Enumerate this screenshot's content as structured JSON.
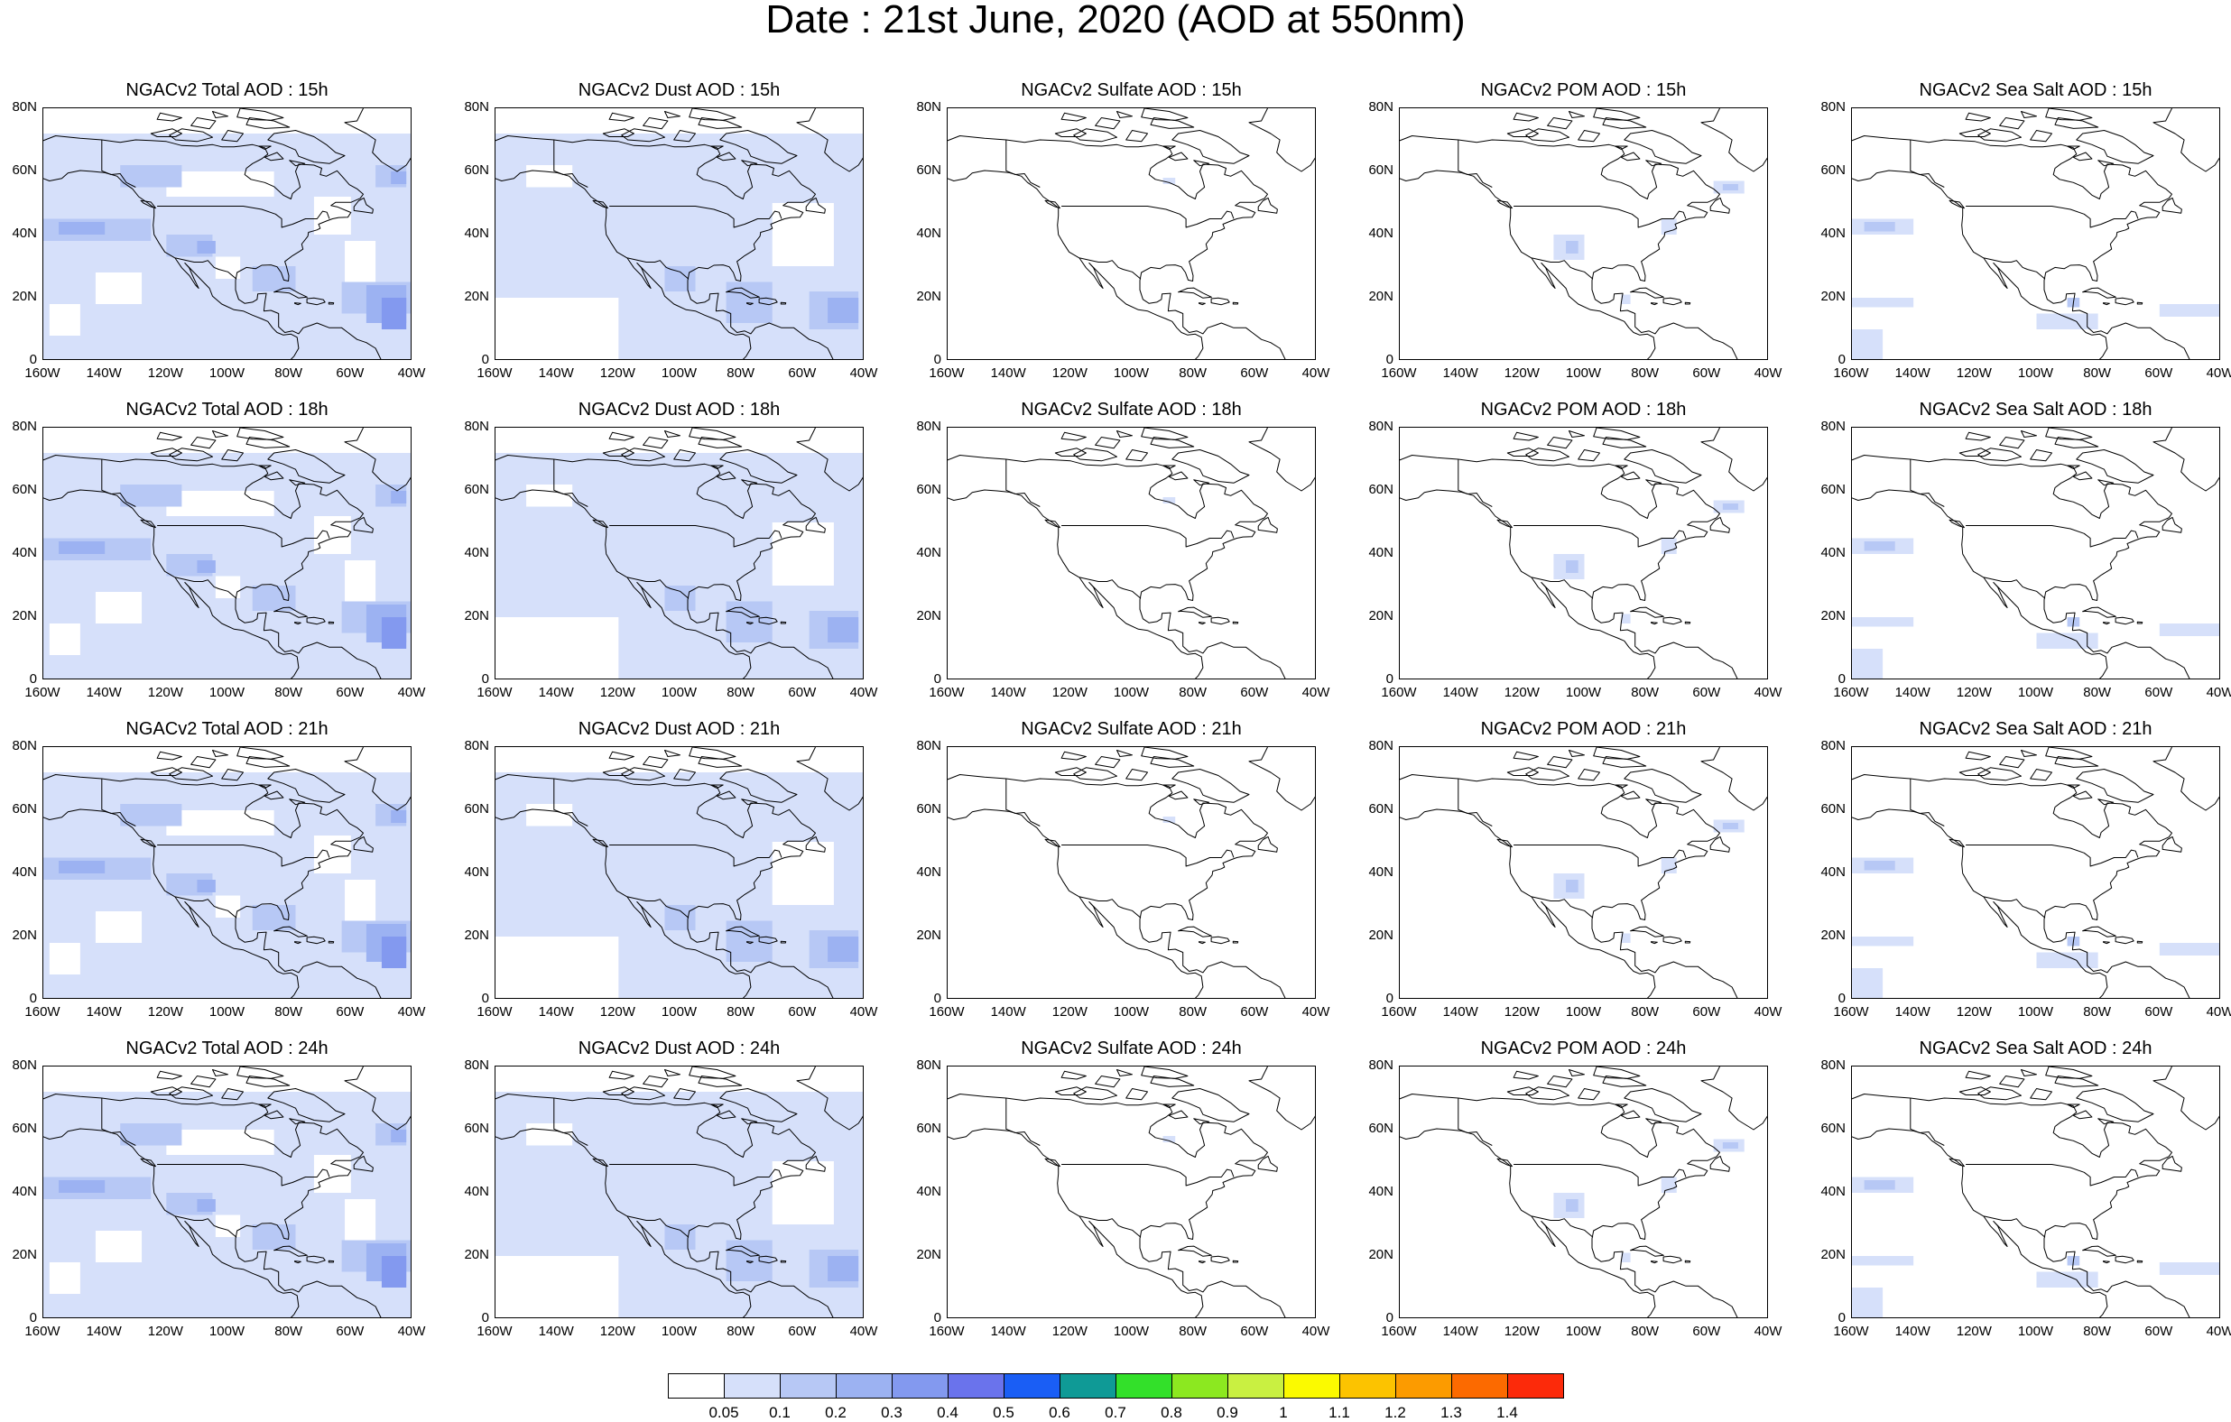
{
  "title": "Date : 21st June, 2020 (AOD at 550nm)",
  "y_ticks": [
    "80N",
    "60N",
    "40N",
    "20N",
    "0"
  ],
  "x_ticks": [
    "160W",
    "140W",
    "120W",
    "100W",
    "80W",
    "60W",
    "40W"
  ],
  "panels": [
    [
      {
        "title": "NGACv2 Total AOD : 15h",
        "kind": "total"
      },
      {
        "title": "NGACv2 Dust AOD : 15h",
        "kind": "dust"
      },
      {
        "title": "NGACv2 Sulfate AOD : 15h",
        "kind": "sulfate"
      },
      {
        "title": "NGACv2 POM AOD : 15h",
        "kind": "pom"
      },
      {
        "title": "NGACv2 Sea Salt AOD : 15h",
        "kind": "seasalt"
      }
    ],
    [
      {
        "title": "NGACv2 Total AOD : 18h",
        "kind": "total"
      },
      {
        "title": "NGACv2 Dust AOD : 18h",
        "kind": "dust"
      },
      {
        "title": "NGACv2 Sulfate AOD : 18h",
        "kind": "sulfate"
      },
      {
        "title": "NGACv2 POM AOD : 18h",
        "kind": "pom"
      },
      {
        "title": "NGACv2 Sea Salt AOD : 18h",
        "kind": "seasalt"
      }
    ],
    [
      {
        "title": "NGACv2 Total AOD : 21h",
        "kind": "total"
      },
      {
        "title": "NGACv2 Dust AOD : 21h",
        "kind": "dust"
      },
      {
        "title": "NGACv2 Sulfate AOD : 21h",
        "kind": "sulfate"
      },
      {
        "title": "NGACv2 POM AOD : 21h",
        "kind": "pom"
      },
      {
        "title": "NGACv2 Sea Salt AOD : 21h",
        "kind": "seasalt"
      }
    ],
    [
      {
        "title": "NGACv2 Total AOD : 24h",
        "kind": "total"
      },
      {
        "title": "NGACv2 Dust AOD : 24h",
        "kind": "dust"
      },
      {
        "title": "NGACv2 Sulfate AOD : 24h",
        "kind": "sulfate"
      },
      {
        "title": "NGACv2 POM AOD : 24h",
        "kind": "pom"
      },
      {
        "title": "NGACv2 Sea Salt  AOD : 24h",
        "kind": "seasalt"
      }
    ]
  ],
  "colorbar": {
    "labels": [
      "0.05",
      "0.1",
      "0.2",
      "0.3",
      "0.4",
      "0.5",
      "0.6",
      "0.7",
      "0.8",
      "0.9",
      "1",
      "1.1",
      "1.2",
      "1.3",
      "1.4"
    ],
    "colors": [
      "#ffffff",
      "#d6e0fa",
      "#b7c8f5",
      "#9cb2f2",
      "#8399ef",
      "#6a73ec",
      "#1a5ef5",
      "#0f9a96",
      "#33e02a",
      "#8ce820",
      "#c9f041",
      "#fbfa00",
      "#fcc300",
      "#fc9b00",
      "#fc6a00",
      "#fc2a0a"
    ]
  }
}
